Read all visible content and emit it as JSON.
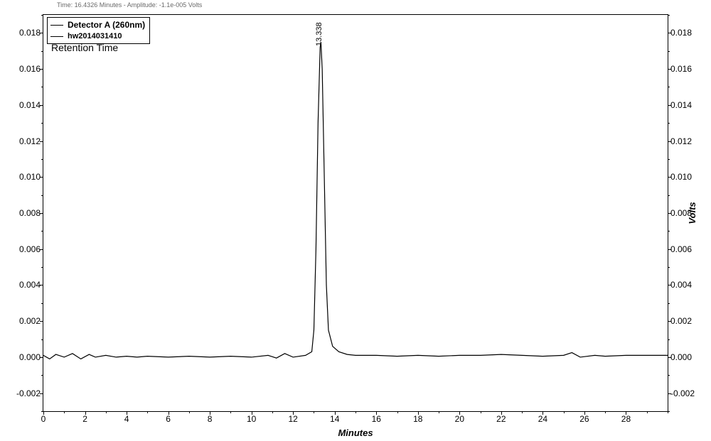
{
  "header": {
    "status_text": "Time: 16.4326 Minutes - Amplitude: -1.1e-005 Volts"
  },
  "legend": {
    "detector_label": "Detector A (260nm)",
    "sample_name": "hw2014031410"
  },
  "retention_label": "Retention Time",
  "peak": {
    "rt_label": "13.338",
    "rt_value": 13.338,
    "height": 0.0175
  },
  "chart": {
    "type": "chromatogram",
    "xlim": [
      0,
      30
    ],
    "ylim": [
      -0.003,
      0.019
    ],
    "x_major_ticks": [
      0,
      2,
      4,
      6,
      8,
      10,
      12,
      14,
      16,
      18,
      20,
      22,
      24,
      26,
      28
    ],
    "x_minor_step": 1,
    "y_major_ticks": [
      -0.002,
      0.0,
      0.002,
      0.004,
      0.006,
      0.008,
      0.01,
      0.012,
      0.014,
      0.016,
      0.018
    ],
    "y_tick_labels": [
      "-0.002",
      "0.000",
      "0.002",
      "0.004",
      "0.006",
      "0.008",
      "0.010",
      "0.012",
      "0.014",
      "0.016",
      "0.018"
    ],
    "y_minor_step": 0.001,
    "x_axis_title": "Minutes",
    "y_axis_title": "Volts",
    "line_color": "#000000",
    "line_width": 1.2,
    "background_color": "#ffffff",
    "border_color": "#000000",
    "tick_fontsize": 12,
    "axis_title_fontsize": 13,
    "data": [
      [
        0.0,
        0.0001
      ],
      [
        0.3,
        -0.0001
      ],
      [
        0.6,
        0.00015
      ],
      [
        1.0,
        0.0
      ],
      [
        1.4,
        0.0002
      ],
      [
        1.8,
        -0.0001
      ],
      [
        2.2,
        0.00015
      ],
      [
        2.5,
        0.0
      ],
      [
        3.0,
        0.0001
      ],
      [
        3.5,
        0.0
      ],
      [
        4.0,
        5e-05
      ],
      [
        4.5,
        0.0
      ],
      [
        5.0,
        5e-05
      ],
      [
        6.0,
        0.0
      ],
      [
        7.0,
        5e-05
      ],
      [
        8.0,
        0.0
      ],
      [
        9.0,
        5e-05
      ],
      [
        10.0,
        0.0
      ],
      [
        10.8,
        0.0001
      ],
      [
        11.2,
        -5e-05
      ],
      [
        11.6,
        0.0002
      ],
      [
        12.0,
        0.0
      ],
      [
        12.6,
        0.0001
      ],
      [
        12.9,
        0.0003
      ],
      [
        13.0,
        0.0015
      ],
      [
        13.1,
        0.006
      ],
      [
        13.2,
        0.013
      ],
      [
        13.3,
        0.0172
      ],
      [
        13.338,
        0.0175
      ],
      [
        13.4,
        0.016
      ],
      [
        13.5,
        0.01
      ],
      [
        13.6,
        0.004
      ],
      [
        13.7,
        0.0015
      ],
      [
        13.9,
        0.0006
      ],
      [
        14.2,
        0.0003
      ],
      [
        14.6,
        0.00015
      ],
      [
        15.0,
        0.0001
      ],
      [
        16.0,
        0.0001
      ],
      [
        17.0,
        5e-05
      ],
      [
        18.0,
        0.0001
      ],
      [
        19.0,
        5e-05
      ],
      [
        20.0,
        0.0001
      ],
      [
        21.0,
        0.0001
      ],
      [
        22.0,
        0.00015
      ],
      [
        23.0,
        0.0001
      ],
      [
        24.0,
        5e-05
      ],
      [
        25.0,
        0.0001
      ],
      [
        25.4,
        0.00025
      ],
      [
        25.8,
        0.0
      ],
      [
        26.5,
        0.0001
      ],
      [
        27.0,
        5e-05
      ],
      [
        28.0,
        0.0001
      ],
      [
        29.0,
        0.0001
      ],
      [
        30.0,
        0.0001
      ]
    ]
  }
}
